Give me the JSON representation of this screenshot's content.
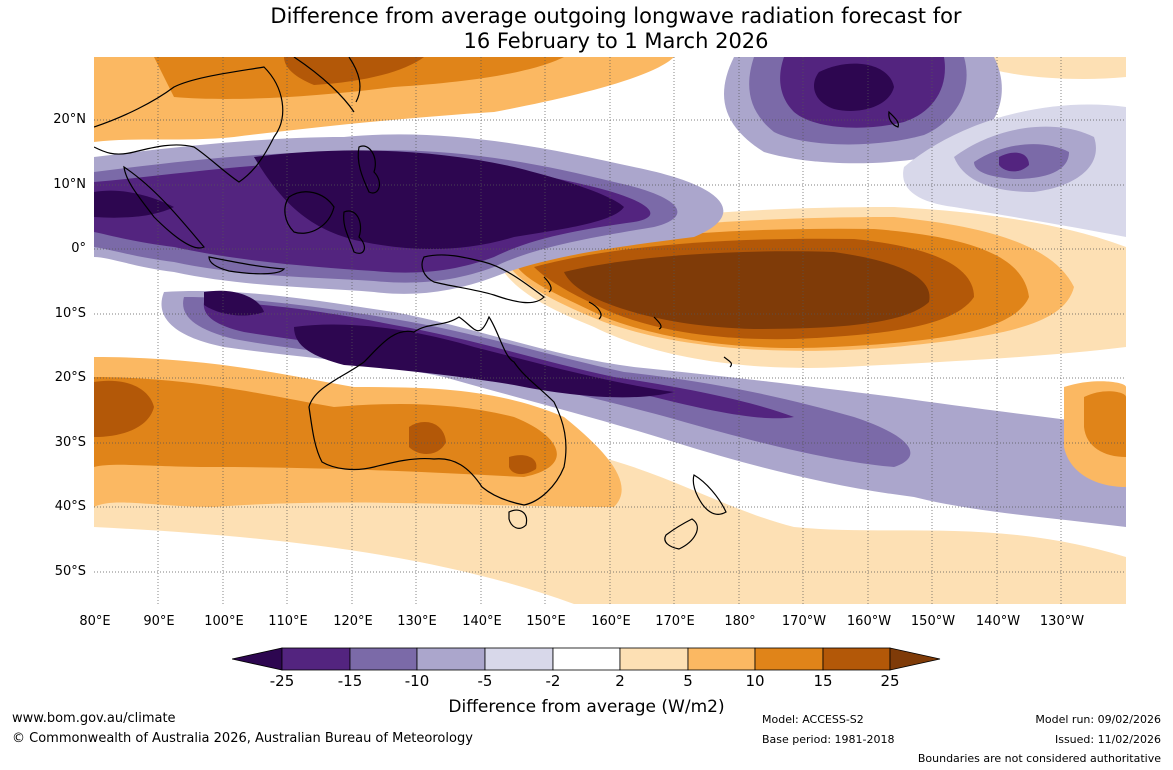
{
  "title": {
    "line1": "Difference from average outgoing longwave radiation forecast for",
    "line2": "16 February to 1 March 2026"
  },
  "axes": {
    "lat_labels": [
      "20°N",
      "10°N",
      "0°",
      "10°S",
      "20°S",
      "30°S",
      "40°S",
      "50°S"
    ],
    "lon_labels": [
      "80°E",
      "90°E",
      "100°E",
      "110°E",
      "120°E",
      "130°E",
      "140°E",
      "150°E",
      "160°E",
      "170°E",
      "180°",
      "170°W",
      "160°W",
      "150°W",
      "140°W",
      "130°W"
    ]
  },
  "colorbar": {
    "ticks": [
      "-25",
      "-15",
      "-10",
      "-5",
      "-2",
      "2",
      "5",
      "10",
      "15",
      "25"
    ],
    "colors": {
      "extreme_low": "#2d0650",
      "c1": "#53247f",
      "c2": "#7b6aa8",
      "c3": "#aba6cc",
      "c4": "#d8d8ea",
      "c5": "#ffffff",
      "c6": "#fde0b4",
      "c7": "#fbb862",
      "c8": "#e08419",
      "c9": "#b35808",
      "extreme_high": "#7f3b08"
    },
    "title": "Difference from average (W/m2)"
  },
  "footer": {
    "url": "www.bom.gov.au/climate",
    "copyright": "© Commonwealth of Australia 2026, Australian Bureau of Meteorology",
    "model": "Model: ACCESS-S2",
    "base_period": "Base period: 1981-2018",
    "model_run": "Model run: 09/02/2026",
    "issued": "Issued: 11/02/2026",
    "disclaimer": "Boundaries are not considered authoritative"
  }
}
